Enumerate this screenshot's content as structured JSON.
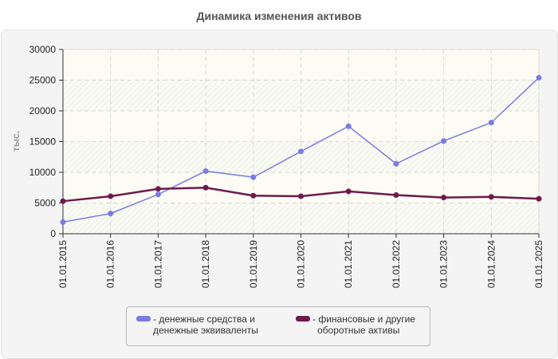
{
  "title": "Динамика изменения активов",
  "chart_data": {
    "type": "line",
    "title": "Динамика изменения активов",
    "xlabel": "",
    "ylabel": "тыс.",
    "ylim": [
      0,
      30000
    ],
    "yticks": [
      0,
      5000,
      10000,
      15000,
      20000,
      25000,
      30000
    ],
    "grid": true,
    "legend_position": "bottom",
    "categories": [
      "01.01.2015",
      "01.01.2016",
      "01.01.2017",
      "01.01.2018",
      "01.01.2019",
      "01.01.2020",
      "01.01.2021",
      "01.01.2022",
      "01.01.2023",
      "01.01.2024",
      "01.01.2025"
    ],
    "series": [
      {
        "name": "- денежные средства и денежные эквиваленты",
        "color": "#7b7be6",
        "values": [
          1900,
          3300,
          6400,
          10200,
          9200,
          13400,
          17500,
          11400,
          15100,
          18100,
          25400
        ]
      },
      {
        "name": "- финансовые и другие оборотные активы",
        "color": "#6e1a4e",
        "values": [
          5300,
          6100,
          7300,
          7500,
          6200,
          6100,
          6900,
          6300,
          5900,
          6000,
          5700
        ]
      }
    ]
  },
  "legend": {
    "items": [
      {
        "line1": "- денежные средства и",
        "line2": "денежные эквиваленты",
        "color": "#7b7be6"
      },
      {
        "line1": "- финансовые и другие",
        "line2": "оборотные активы",
        "color": "#6e1a4e"
      }
    ]
  }
}
